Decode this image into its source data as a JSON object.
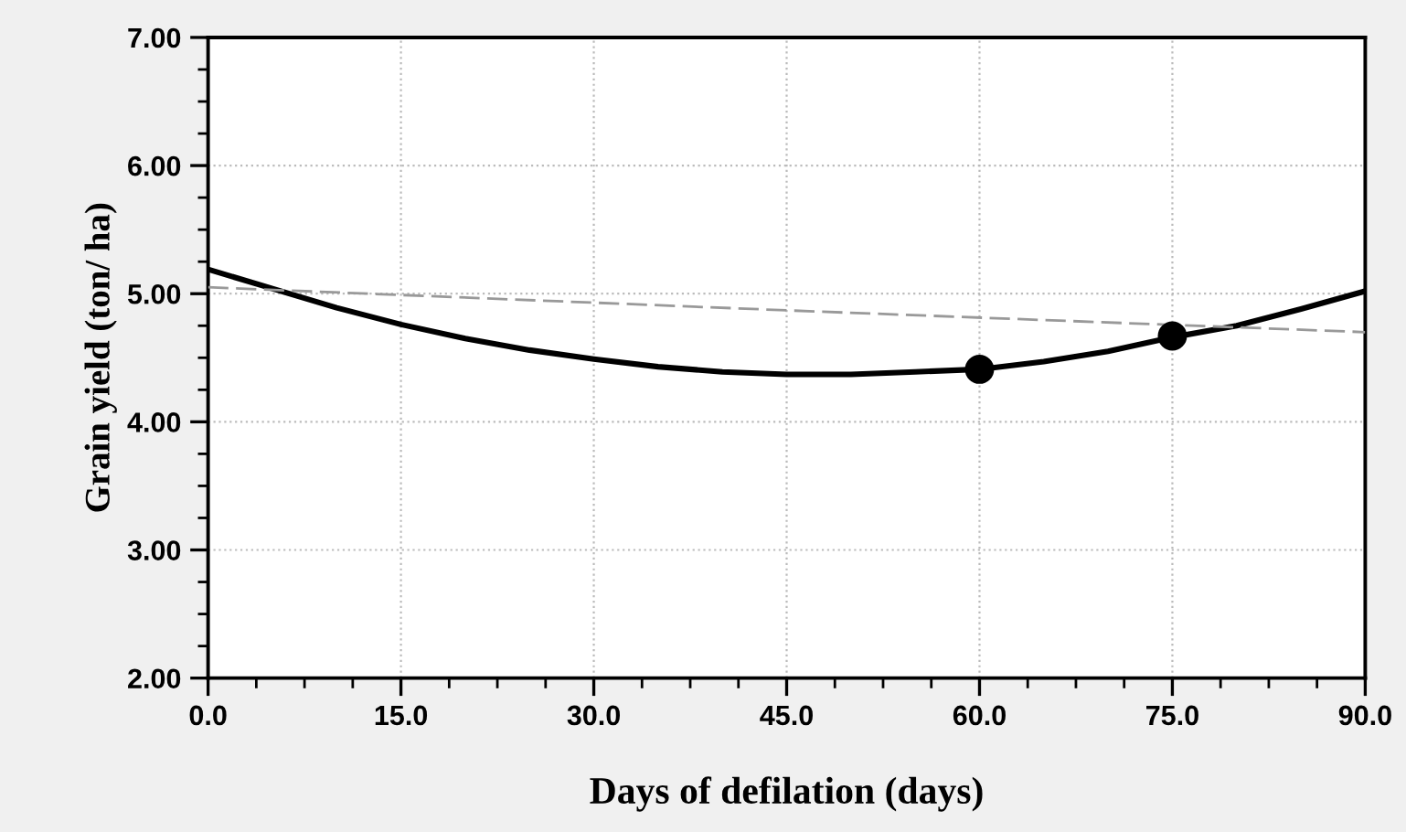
{
  "chart_data": {
    "type": "line",
    "xlabel": "Days of defilation (days)",
    "ylabel": "Grain yield (ton/ ha)",
    "xlim": [
      0,
      90
    ],
    "ylim": [
      2,
      7
    ],
    "xticks": [
      {
        "value": 0,
        "label": "0.0"
      },
      {
        "value": 15,
        "label": "15.0"
      },
      {
        "value": 30,
        "label": "30.0"
      },
      {
        "value": 45,
        "label": "45.0"
      },
      {
        "value": 60,
        "label": "60.0"
      },
      {
        "value": 75,
        "label": "75.0"
      },
      {
        "value": 90,
        "label": "90.0"
      }
    ],
    "yticks": [
      {
        "value": 2,
        "label": "2.00"
      },
      {
        "value": 3,
        "label": "3.00"
      },
      {
        "value": 4,
        "label": "4.00"
      },
      {
        "value": 5,
        "label": "5.00"
      },
      {
        "value": 6,
        "label": "6.00"
      },
      {
        "value": 7,
        "label": "7.00"
      }
    ],
    "grid": true,
    "series": [
      {
        "color": "#000000",
        "line_style": "solid",
        "marker": "none",
        "x": [
          0,
          5,
          10,
          15,
          20,
          25,
          30,
          35,
          40,
          45,
          50,
          55,
          60,
          65,
          70,
          75,
          80,
          85,
          90
        ],
        "values": [
          5.19,
          5.04,
          4.89,
          4.76,
          4.65,
          4.56,
          4.49,
          4.43,
          4.39,
          4.37,
          4.37,
          4.39,
          4.41,
          4.47,
          4.55,
          4.66,
          4.75,
          4.88,
          5.02
        ]
      },
      {
        "color": "#999999",
        "line_style": "dashed",
        "marker": "none",
        "x": [
          0,
          45,
          90
        ],
        "values": [
          5.05,
          4.87,
          4.7
        ]
      },
      {
        "type": "scatter",
        "color": "#000000",
        "marker": "circle",
        "x": [
          60,
          75
        ],
        "values": [
          4.41,
          4.67
        ]
      }
    ]
  }
}
